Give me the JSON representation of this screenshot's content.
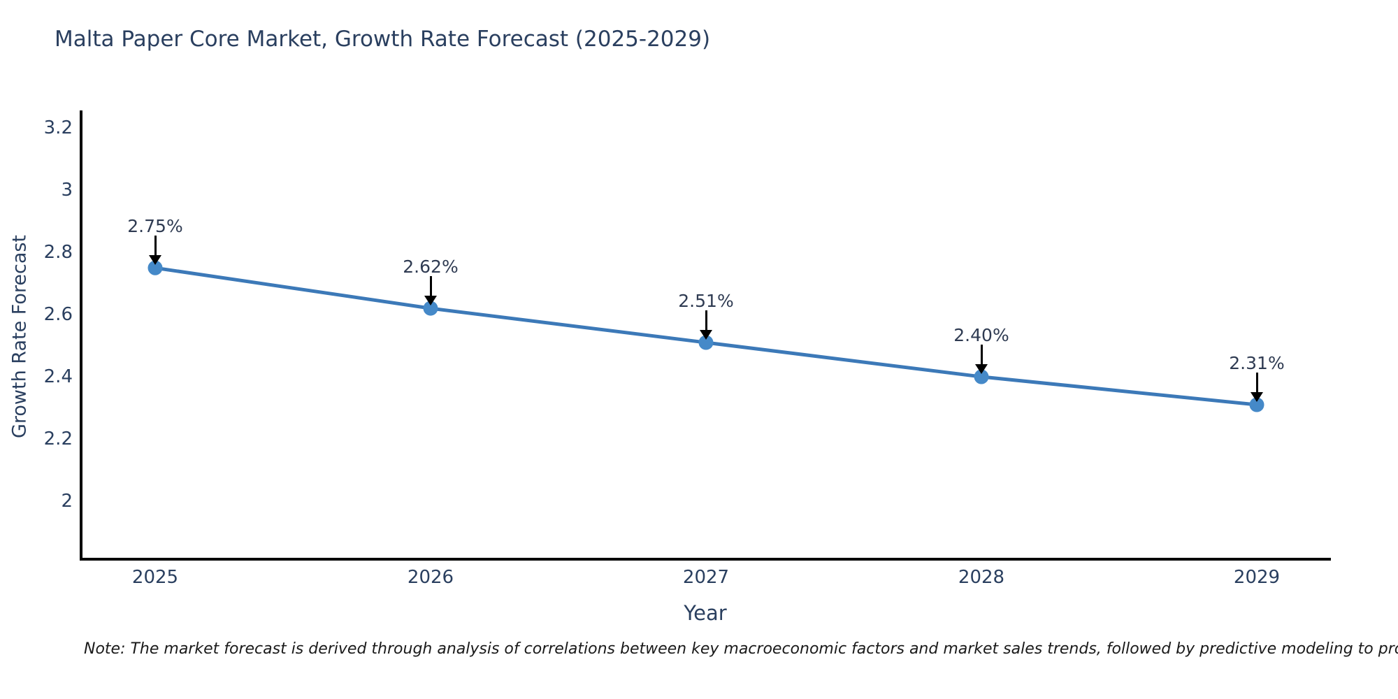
{
  "header": {
    "title": "Malta Paper Core Market, Growth Rate Forecast (2025-2029)"
  },
  "chart_data": {
    "type": "line",
    "title": "Malta Paper Core Market, Growth Rate Forecast (2025-2029)",
    "xlabel": "Year",
    "ylabel": "Growth Rate Forecast",
    "x": [
      2025,
      2026,
      2027,
      2028,
      2029
    ],
    "x_tick_labels": [
      "2025",
      "2026",
      "2027",
      "2028",
      "2029"
    ],
    "series": [
      {
        "name": "Growth Rate Forecast",
        "values": [
          2.75,
          2.62,
          2.51,
          2.4,
          2.31
        ]
      }
    ],
    "point_labels": [
      "2.75%",
      "2.62%",
      "2.51%",
      "2.40%",
      "2.31%"
    ],
    "y_ticks": [
      3.2,
      3,
      2.8,
      2.6,
      2.4,
      2.2,
      2
    ],
    "y_tick_labels": [
      "3.2",
      "3",
      "2.8",
      "2.6",
      "2.4",
      "2.2",
      "2"
    ],
    "ylim": [
      1.78,
      3.25
    ],
    "xlim": [
      2024.73,
      2029.27
    ],
    "grid": false,
    "legend": "none",
    "line_color": "#3c79b8",
    "marker_color": "#4589c8",
    "axis_color": "#000000",
    "text_color": "#2a3f5f",
    "annotation_arrow_color": "#000000"
  },
  "footnote": {
    "text": "Note: The market forecast is derived through analysis of correlations between key macroeconomic factors and market sales trends, followed by predictive modeling to project future sales"
  }
}
